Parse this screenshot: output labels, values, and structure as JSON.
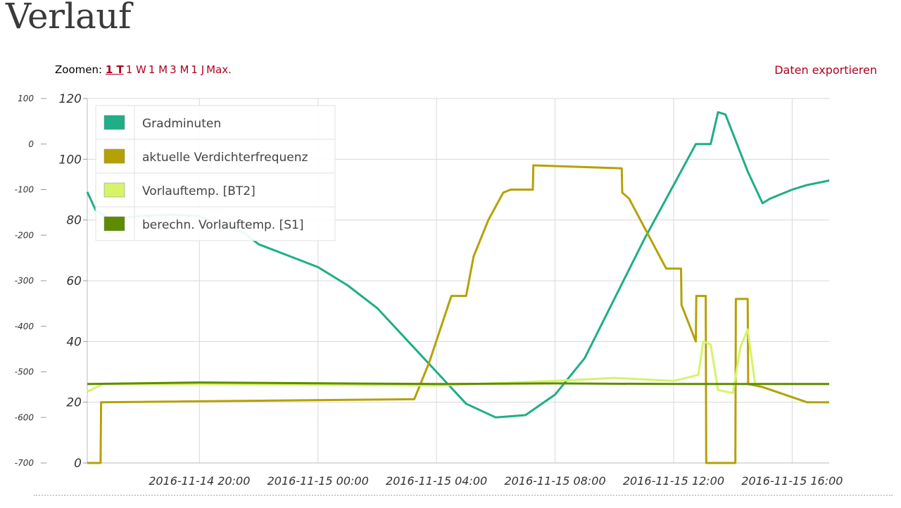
{
  "page": {
    "title": "Verlauf"
  },
  "toolbar": {
    "zoom_label": "Zoomen:",
    "zoom_options": [
      "1 T",
      "1 W",
      "1 M",
      "3 M",
      "1 J",
      "Max."
    ],
    "zoom_active": "1 T",
    "export_label": "Daten exportieren"
  },
  "chart_data": {
    "type": "line",
    "x_labels": [
      "2016-11-14 20:00",
      "2016-11-15 00:00",
      "2016-11-15 04:00",
      "2016-11-15 08:00",
      "2016-11-15 12:00",
      "2016-11-15 16:00"
    ],
    "x_range": [
      "2016-11-14 16:13",
      "2016-11-15 17:15"
    ],
    "left_axis": {
      "range": [
        -700,
        100
      ],
      "ticks": [
        100,
        0,
        -100,
        -200,
        -300,
        -400,
        -500,
        -600,
        -700
      ]
    },
    "right_axis": {
      "range": [
        0,
        120
      ],
      "ticks": [
        120,
        100,
        80,
        60,
        40,
        20,
        0
      ]
    },
    "grid": true,
    "legend_position": "top-left",
    "series": [
      {
        "name": "Gradminuten",
        "color": "#1fae86",
        "axis": "left",
        "points": [
          [
            "2016-11-14 16:13",
            -105
          ],
          [
            "2016-11-14 16:30",
            -145
          ],
          [
            "2016-11-14 17:00",
            -165
          ],
          [
            "2016-11-14 18:00",
            -158
          ],
          [
            "2016-11-14 19:00",
            -155
          ],
          [
            "2016-11-14 20:00",
            -158
          ],
          [
            "2016-11-14 21:30",
            -195
          ],
          [
            "2016-11-14 22:00",
            -220
          ],
          [
            "2016-11-14 23:00",
            -245
          ],
          [
            "2016-11-15 00:00",
            -270
          ],
          [
            "2016-11-15 01:00",
            -310
          ],
          [
            "2016-11-15 02:00",
            -360
          ],
          [
            "2016-11-15 03:00",
            -430
          ],
          [
            "2016-11-15 04:00",
            -500
          ],
          [
            "2016-11-15 05:00",
            -570
          ],
          [
            "2016-11-15 06:00",
            -600
          ],
          [
            "2016-11-15 07:00",
            -595
          ],
          [
            "2016-11-15 08:00",
            -550
          ],
          [
            "2016-11-15 09:00",
            -470
          ],
          [
            "2016-11-15 10:00",
            -340
          ],
          [
            "2016-11-15 11:00",
            -210
          ],
          [
            "2016-11-15 12:00",
            -90
          ],
          [
            "2016-11-15 12:45",
            0
          ],
          [
            "2016-11-15 13:15",
            0
          ],
          [
            "2016-11-15 13:30",
            70
          ],
          [
            "2016-11-15 13:45",
            65
          ],
          [
            "2016-11-15 14:30",
            -60
          ],
          [
            "2016-11-15 15:00",
            -130
          ],
          [
            "2016-11-15 15:15",
            -120
          ],
          [
            "2016-11-15 16:00",
            -100
          ],
          [
            "2016-11-15 16:30",
            -90
          ],
          [
            "2016-11-15 17:15",
            -80
          ]
        ]
      },
      {
        "name": "aktuelle Verdichterfrequenz",
        "color": "#b5a106",
        "axis": "right",
        "points": [
          [
            "2016-11-14 16:13",
            0
          ],
          [
            "2016-11-14 16:40",
            0
          ],
          [
            "2016-11-14 16:41",
            20
          ],
          [
            "2016-11-15 03:15",
            21
          ],
          [
            "2016-11-15 03:45",
            33
          ],
          [
            "2016-11-15 04:30",
            55
          ],
          [
            "2016-11-15 05:00",
            55
          ],
          [
            "2016-11-15 05:15",
            68
          ],
          [
            "2016-11-15 05:45",
            80
          ],
          [
            "2016-11-15 06:15",
            89
          ],
          [
            "2016-11-15 06:30",
            90
          ],
          [
            "2016-11-15 07:15",
            90
          ],
          [
            "2016-11-15 07:16",
            98
          ],
          [
            "2016-11-15 10:15",
            97
          ],
          [
            "2016-11-15 10:16",
            89
          ],
          [
            "2016-11-15 10:30",
            87
          ],
          [
            "2016-11-15 11:45",
            64
          ],
          [
            "2016-11-15 12:15",
            64
          ],
          [
            "2016-11-15 12:16",
            52
          ],
          [
            "2016-11-15 12:45",
            40
          ],
          [
            "2016-11-15 12:46",
            55
          ],
          [
            "2016-11-15 13:05",
            55
          ],
          [
            "2016-11-15 13:06",
            0
          ],
          [
            "2016-11-15 14:05",
            0
          ],
          [
            "2016-11-15 14:06",
            54
          ],
          [
            "2016-11-15 14:30",
            54
          ],
          [
            "2016-11-15 14:31",
            26
          ],
          [
            "2016-11-15 15:00",
            25
          ],
          [
            "2016-11-15 16:30",
            20
          ],
          [
            "2016-11-15 17:15",
            20
          ]
        ]
      },
      {
        "name": "Vorlauftemp. [BT2]",
        "color": "#d6f36a",
        "axis": "right",
        "points": [
          [
            "2016-11-14 16:13",
            23.5
          ],
          [
            "2016-11-14 16:45",
            26
          ],
          [
            "2016-11-14 20:00",
            26
          ],
          [
            "2016-11-15 04:00",
            25.5
          ],
          [
            "2016-11-15 08:00",
            27
          ],
          [
            "2016-11-15 10:00",
            28
          ],
          [
            "2016-11-15 12:00",
            27
          ],
          [
            "2016-11-15 12:50",
            29
          ],
          [
            "2016-11-15 13:00",
            40
          ],
          [
            "2016-11-15 13:15",
            39
          ],
          [
            "2016-11-15 13:30",
            24
          ],
          [
            "2016-11-15 14:00",
            23
          ],
          [
            "2016-11-15 14:15",
            38
          ],
          [
            "2016-11-15 14:30",
            44
          ],
          [
            "2016-11-15 14:45",
            26
          ],
          [
            "2016-11-15 16:00",
            26
          ],
          [
            "2016-11-15 17:15",
            26
          ]
        ]
      },
      {
        "name": "berechn. Vorlauftemp. [S1]",
        "color": "#5e8c00",
        "axis": "right",
        "points": [
          [
            "2016-11-14 16:13",
            26
          ],
          [
            "2016-11-14 20:00",
            26.5
          ],
          [
            "2016-11-15 04:00",
            26
          ],
          [
            "2016-11-15 08:00",
            26.2
          ],
          [
            "2016-11-15 12:00",
            26
          ],
          [
            "2016-11-15 17:15",
            26
          ]
        ]
      }
    ]
  }
}
